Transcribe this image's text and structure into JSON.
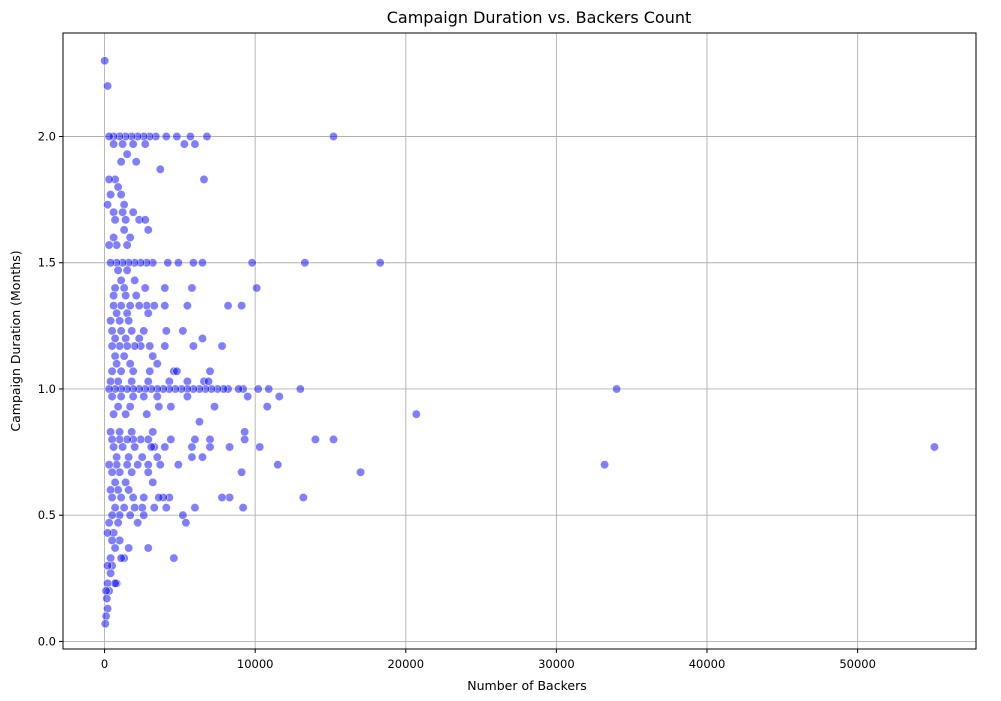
{
  "chart_data": {
    "type": "scatter",
    "title": "Campaign Duration vs. Backers Count",
    "xlabel": "Number of Backers",
    "ylabel": "Campaign Duration (Months)",
    "xlim": [
      -2760,
      57860
    ],
    "ylim": [
      -0.03,
      2.41
    ],
    "xticks": [
      0,
      10000,
      20000,
      30000,
      40000,
      50000
    ],
    "yticks": [
      0.0,
      0.5,
      1.0,
      1.5,
      2.0
    ],
    "xtick_labels": [
      "0",
      "10000",
      "20000",
      "30000",
      "40000",
      "50000"
    ],
    "ytick_labels": [
      "0.0",
      "0.5",
      "1.0",
      "1.5",
      "2.0"
    ],
    "grid": true,
    "legend": "none",
    "colors": {
      "point_fill": "#0000ff",
      "point_edge": "#ffffff",
      "grid": "#b0b0b0"
    },
    "point_alpha": 0.5,
    "series": [
      {
        "points": [
          [
            10,
            2.3
          ],
          [
            200,
            2.2
          ],
          [
            15200,
            2.0
          ],
          [
            6800,
            2.0
          ],
          [
            5700,
            2.0
          ],
          [
            4800,
            2.0
          ],
          [
            4100,
            2.0
          ],
          [
            3400,
            2.0
          ],
          [
            3000,
            2.0
          ],
          [
            2600,
            2.0
          ],
          [
            2200,
            2.0
          ],
          [
            1800,
            2.0
          ],
          [
            1400,
            2.0
          ],
          [
            1000,
            2.0
          ],
          [
            600,
            2.0
          ],
          [
            300,
            2.0
          ],
          [
            6000,
            1.97
          ],
          [
            5300,
            1.97
          ],
          [
            2700,
            1.97
          ],
          [
            1900,
            1.97
          ],
          [
            1200,
            1.97
          ],
          [
            600,
            1.97
          ],
          [
            1500,
            1.93
          ],
          [
            1100,
            1.9
          ],
          [
            2100,
            1.9
          ],
          [
            3700,
            1.87
          ],
          [
            6600,
            1.83
          ],
          [
            700,
            1.83
          ],
          [
            300,
            1.83
          ],
          [
            900,
            1.8
          ],
          [
            400,
            1.77
          ],
          [
            1100,
            1.77
          ],
          [
            1300,
            1.73
          ],
          [
            200,
            1.73
          ],
          [
            1900,
            1.7
          ],
          [
            1200,
            1.7
          ],
          [
            600,
            1.7
          ],
          [
            2300,
            1.67
          ],
          [
            2700,
            1.67
          ],
          [
            1400,
            1.67
          ],
          [
            700,
            1.67
          ],
          [
            2900,
            1.63
          ],
          [
            1300,
            1.63
          ],
          [
            600,
            1.6
          ],
          [
            1700,
            1.6
          ],
          [
            1500,
            1.57
          ],
          [
            800,
            1.57
          ],
          [
            300,
            1.57
          ],
          [
            9800,
            1.5
          ],
          [
            13300,
            1.5
          ],
          [
            18300,
            1.5
          ],
          [
            6500,
            1.5
          ],
          [
            5900,
            1.5
          ],
          [
            4900,
            1.5
          ],
          [
            4200,
            1.5
          ],
          [
            3200,
            1.5
          ],
          [
            2800,
            1.5
          ],
          [
            2400,
            1.5
          ],
          [
            2000,
            1.5
          ],
          [
            1600,
            1.5
          ],
          [
            1200,
            1.5
          ],
          [
            800,
            1.5
          ],
          [
            400,
            1.5
          ],
          [
            1500,
            1.47
          ],
          [
            900,
            1.47
          ],
          [
            2000,
            1.43
          ],
          [
            1100,
            1.43
          ],
          [
            5800,
            1.4
          ],
          [
            10100,
            1.4
          ],
          [
            4000,
            1.4
          ],
          [
            2700,
            1.4
          ],
          [
            1300,
            1.4
          ],
          [
            700,
            1.4
          ],
          [
            1400,
            1.37
          ],
          [
            600,
            1.37
          ],
          [
            2100,
            1.37
          ],
          [
            8200,
            1.33
          ],
          [
            9100,
            1.33
          ],
          [
            5500,
            1.33
          ],
          [
            4000,
            1.33
          ],
          [
            3300,
            1.33
          ],
          [
            2800,
            1.33
          ],
          [
            2300,
            1.33
          ],
          [
            1700,
            1.33
          ],
          [
            1100,
            1.33
          ],
          [
            600,
            1.33
          ],
          [
            2900,
            1.3
          ],
          [
            1500,
            1.3
          ],
          [
            800,
            1.3
          ],
          [
            1600,
            1.27
          ],
          [
            1000,
            1.27
          ],
          [
            400,
            1.27
          ],
          [
            5200,
            1.23
          ],
          [
            4100,
            1.23
          ],
          [
            2600,
            1.23
          ],
          [
            1800,
            1.23
          ],
          [
            1100,
            1.23
          ],
          [
            500,
            1.23
          ],
          [
            6500,
            1.2
          ],
          [
            2300,
            1.2
          ],
          [
            1400,
            1.2
          ],
          [
            700,
            1.2
          ],
          [
            7800,
            1.17
          ],
          [
            5900,
            1.17
          ],
          [
            4000,
            1.17
          ],
          [
            3000,
            1.17
          ],
          [
            2400,
            1.17
          ],
          [
            2000,
            1.17
          ],
          [
            1500,
            1.17
          ],
          [
            1000,
            1.17
          ],
          [
            500,
            1.17
          ],
          [
            3200,
            1.13
          ],
          [
            1300,
            1.13
          ],
          [
            700,
            1.13
          ],
          [
            3500,
            1.1
          ],
          [
            1700,
            1.1
          ],
          [
            800,
            1.1
          ],
          [
            4600,
            1.07
          ],
          [
            4800,
            1.07
          ],
          [
            7000,
            1.07
          ],
          [
            3000,
            1.07
          ],
          [
            1900,
            1.07
          ],
          [
            1100,
            1.07
          ],
          [
            500,
            1.07
          ],
          [
            4300,
            1.03
          ],
          [
            5500,
            1.03
          ],
          [
            6600,
            1.03
          ],
          [
            6900,
            1.03
          ],
          [
            2900,
            1.03
          ],
          [
            1800,
            1.03
          ],
          [
            900,
            1.03
          ],
          [
            400,
            1.03
          ],
          [
            34000,
            1.0
          ],
          [
            13000,
            1.0
          ],
          [
            10900,
            1.0
          ],
          [
            10200,
            1.0
          ],
          [
            9200,
            1.0
          ],
          [
            8900,
            1.0
          ],
          [
            8200,
            1.0
          ],
          [
            7900,
            1.0
          ],
          [
            7500,
            1.0
          ],
          [
            7100,
            1.0
          ],
          [
            6700,
            1.0
          ],
          [
            6300,
            1.0
          ],
          [
            5900,
            1.0
          ],
          [
            5500,
            1.0
          ],
          [
            5100,
            1.0
          ],
          [
            4700,
            1.0
          ],
          [
            4300,
            1.0
          ],
          [
            3900,
            1.0
          ],
          [
            3500,
            1.0
          ],
          [
            3100,
            1.0
          ],
          [
            2700,
            1.0
          ],
          [
            2300,
            1.0
          ],
          [
            1900,
            1.0
          ],
          [
            1500,
            1.0
          ],
          [
            1100,
            1.0
          ],
          [
            700,
            1.0
          ],
          [
            300,
            1.0
          ],
          [
            11600,
            0.97
          ],
          [
            9500,
            0.97
          ],
          [
            5500,
            0.97
          ],
          [
            3500,
            0.97
          ],
          [
            2600,
            0.97
          ],
          [
            1900,
            0.97
          ],
          [
            1100,
            0.97
          ],
          [
            500,
            0.97
          ],
          [
            10800,
            0.93
          ],
          [
            7300,
            0.93
          ],
          [
            4400,
            0.93
          ],
          [
            3600,
            0.93
          ],
          [
            1700,
            0.93
          ],
          [
            900,
            0.93
          ],
          [
            20700,
            0.9
          ],
          [
            2800,
            0.9
          ],
          [
            1400,
            0.9
          ],
          [
            600,
            0.9
          ],
          [
            6300,
            0.87
          ],
          [
            9300,
            0.83
          ],
          [
            3200,
            0.83
          ],
          [
            1800,
            0.83
          ],
          [
            1000,
            0.83
          ],
          [
            400,
            0.83
          ],
          [
            14000,
            0.8
          ],
          [
            15200,
            0.8
          ],
          [
            9300,
            0.8
          ],
          [
            7000,
            0.8
          ],
          [
            6000,
            0.8
          ],
          [
            4400,
            0.8
          ],
          [
            2900,
            0.8
          ],
          [
            2400,
            0.8
          ],
          [
            1900,
            0.8
          ],
          [
            1500,
            0.8
          ],
          [
            1000,
            0.8
          ],
          [
            500,
            0.8
          ],
          [
            55100,
            0.77
          ],
          [
            10300,
            0.77
          ],
          [
            8300,
            0.77
          ],
          [
            7000,
            0.77
          ],
          [
            5800,
            0.77
          ],
          [
            4000,
            0.77
          ],
          [
            3300,
            0.77
          ],
          [
            3100,
            0.77
          ],
          [
            2000,
            0.77
          ],
          [
            1200,
            0.77
          ],
          [
            600,
            0.77
          ],
          [
            6500,
            0.73
          ],
          [
            5800,
            0.73
          ],
          [
            3500,
            0.73
          ],
          [
            2500,
            0.73
          ],
          [
            1600,
            0.73
          ],
          [
            800,
            0.73
          ],
          [
            33200,
            0.7
          ],
          [
            11500,
            0.7
          ],
          [
            4900,
            0.7
          ],
          [
            3700,
            0.7
          ],
          [
            2900,
            0.7
          ],
          [
            2200,
            0.7
          ],
          [
            1500,
            0.7
          ],
          [
            800,
            0.7
          ],
          [
            300,
            0.7
          ],
          [
            17000,
            0.67
          ],
          [
            9100,
            0.67
          ],
          [
            2900,
            0.67
          ],
          [
            1800,
            0.67
          ],
          [
            1000,
            0.67
          ],
          [
            500,
            0.67
          ],
          [
            3200,
            0.63
          ],
          [
            1400,
            0.63
          ],
          [
            700,
            0.63
          ],
          [
            1600,
            0.6
          ],
          [
            900,
            0.6
          ],
          [
            400,
            0.6
          ],
          [
            13200,
            0.57
          ],
          [
            8300,
            0.57
          ],
          [
            7800,
            0.57
          ],
          [
            4300,
            0.57
          ],
          [
            3900,
            0.57
          ],
          [
            3600,
            0.57
          ],
          [
            2600,
            0.57
          ],
          [
            1900,
            0.57
          ],
          [
            1100,
            0.57
          ],
          [
            500,
            0.57
          ],
          [
            9200,
            0.53
          ],
          [
            6000,
            0.53
          ],
          [
            4100,
            0.53
          ],
          [
            3300,
            0.53
          ],
          [
            2500,
            0.53
          ],
          [
            2000,
            0.53
          ],
          [
            1300,
            0.53
          ],
          [
            700,
            0.53
          ],
          [
            5200,
            0.5
          ],
          [
            1700,
            0.5
          ],
          [
            2600,
            0.5
          ],
          [
            1000,
            0.5
          ],
          [
            500,
            0.5
          ],
          [
            5400,
            0.47
          ],
          [
            2200,
            0.47
          ],
          [
            900,
            0.47
          ],
          [
            300,
            0.47
          ],
          [
            600,
            0.43
          ],
          [
            200,
            0.43
          ],
          [
            1000,
            0.4
          ],
          [
            500,
            0.4
          ],
          [
            2900,
            0.37
          ],
          [
            1600,
            0.37
          ],
          [
            700,
            0.37
          ],
          [
            4600,
            0.33
          ],
          [
            1300,
            0.33
          ],
          [
            1100,
            0.33
          ],
          [
            400,
            0.33
          ],
          [
            500,
            0.3
          ],
          [
            200,
            0.3
          ],
          [
            400,
            0.27
          ],
          [
            800,
            0.23
          ],
          [
            700,
            0.23
          ],
          [
            200,
            0.23
          ],
          [
            300,
            0.2
          ],
          [
            100,
            0.2
          ],
          [
            150,
            0.17
          ],
          [
            200,
            0.13
          ],
          [
            100,
            0.1
          ],
          [
            50,
            0.07
          ]
        ]
      }
    ]
  }
}
